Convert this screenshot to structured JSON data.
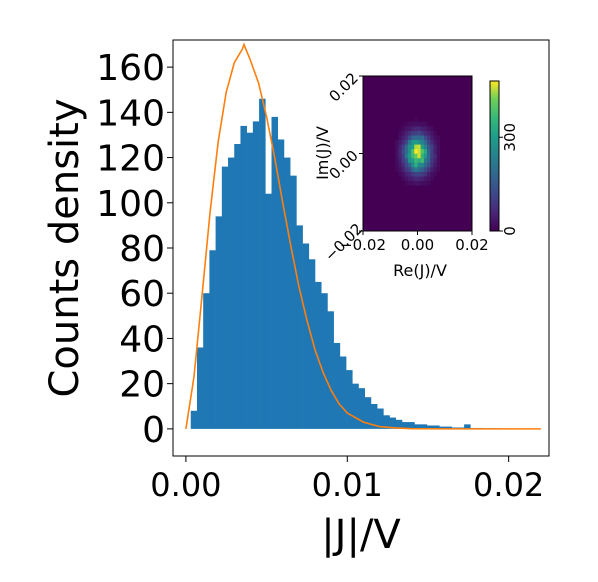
{
  "chart_data": [
    {
      "type": "bar",
      "subtype": "histogram",
      "xlabel": "|J|/V",
      "ylabel": "Counts density",
      "xlim": [
        -0.0008,
        0.0225
      ],
      "ylim": [
        -12,
        172
      ],
      "xticks": [
        0.0,
        0.01,
        0.02
      ],
      "xtick_labels": [
        "0.00",
        "0.01",
        "0.02"
      ],
      "yticks": [
        0,
        20,
        40,
        60,
        80,
        100,
        120,
        140,
        160
      ],
      "ytick_labels": [
        "0",
        "20",
        "40",
        "60",
        "80",
        "100",
        "120",
        "140",
        "160"
      ],
      "grid": false,
      "bar_color": "#1f77b4",
      "bins": {
        "start": 0.0003,
        "width": 0.000385,
        "heights": [
          8,
          36,
          60,
          79,
          94,
          116,
          120,
          126,
          134,
          131,
          136,
          146,
          104,
          138,
          128,
          120,
          112,
          90,
          82,
          75,
          65,
          60,
          52,
          38,
          32,
          26,
          20,
          18,
          14,
          11,
          9,
          6,
          5,
          4,
          3,
          3,
          2,
          2,
          1.5,
          1.5,
          1,
          1,
          0.6,
          0.6,
          2,
          0.4,
          0.4,
          0.3,
          0.3,
          0.3,
          0.2
        ]
      },
      "fit_curve": {
        "color": "#ff7f0e",
        "x": [
          0.0,
          0.0005,
          0.001,
          0.0015,
          0.002,
          0.0025,
          0.003,
          0.0035,
          0.0036,
          0.004,
          0.0045,
          0.005,
          0.0055,
          0.006,
          0.0065,
          0.007,
          0.0075,
          0.008,
          0.0085,
          0.009,
          0.0095,
          0.01,
          0.011,
          0.012,
          0.013,
          0.014,
          0.016,
          0.018,
          0.02,
          0.022
        ],
        "y": [
          0,
          23,
          59,
          96,
          127,
          149,
          162,
          168,
          170,
          163,
          153,
          138,
          120,
          100,
          81,
          63,
          48,
          35,
          25,
          17,
          11,
          7,
          3,
          1,
          0.4,
          0.1,
          0,
          0,
          0,
          0
        ]
      }
    },
    {
      "type": "heatmap",
      "xlabel": "Re(J)/V",
      "ylabel": "Im(J)/V",
      "xlim": [
        -0.02,
        0.02
      ],
      "ylim": [
        -0.02,
        0.02
      ],
      "xtick_labels": [
        "−0.02",
        "0.00",
        "0.02"
      ],
      "ytick_labels": [
        "−0.02",
        "0.00",
        "0.02"
      ],
      "colormap": "viridis",
      "colorbar": {
        "range": [
          0,
          480
        ],
        "ticks": [
          0,
          300
        ],
        "tick_labels": [
          "0",
          "300"
        ]
      },
      "center_value": 480,
      "spread_sigma": 0.0032,
      "grid_size": 34
    }
  ]
}
